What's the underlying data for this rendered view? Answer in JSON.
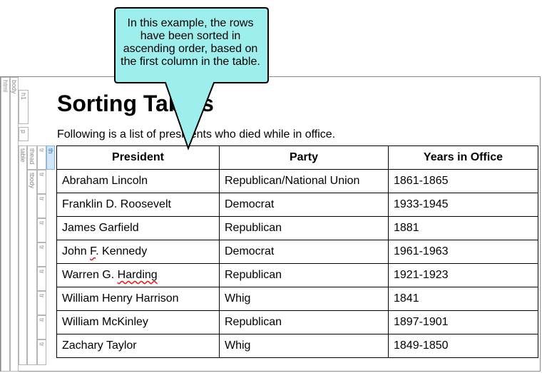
{
  "tag_bar": [
    {
      "label": "html",
      "selected": false
    },
    {
      "label": "body",
      "selected": false
    },
    {
      "label": "h1",
      "selected": false
    },
    {
      "label": "p",
      "selected": false
    },
    {
      "label": "table",
      "selected": false
    },
    {
      "label": "thead",
      "selected": false
    },
    {
      "label": "tbody",
      "selected": false
    },
    {
      "label": "tr",
      "selected": false
    },
    {
      "label": "th",
      "selected": true
    }
  ],
  "document": {
    "heading": "Sorting Tables",
    "intro": "Following is a list of presidents who died while in office.",
    "table": {
      "headers": [
        "President",
        "Party",
        "Years in Office"
      ],
      "rows": [
        [
          "Abraham Lincoln",
          "Republican/National Union",
          "1861-1865"
        ],
        [
          "Franklin D. Roosevelt",
          "Democrat",
          "1933-1945"
        ],
        [
          "James Garfield",
          "Republican",
          "1881"
        ],
        [
          "John F. Kennedy",
          "Democrat",
          "1961-1963"
        ],
        [
          "Warren G. Harding",
          "Republican",
          "1921-1923"
        ],
        [
          "William Henry Harrison",
          "Whig",
          "1841"
        ],
        [
          "William McKinley",
          "Republican",
          "1897-1901"
        ],
        [
          "Zachary Taylor",
          "Whig",
          "1849-1850"
        ]
      ]
    }
  },
  "callout": {
    "text": "In this example, the rows have been sorted in ascending order, based on the first column in the table.",
    "fill_color": "#9eeeee",
    "border_color": "#000000"
  }
}
